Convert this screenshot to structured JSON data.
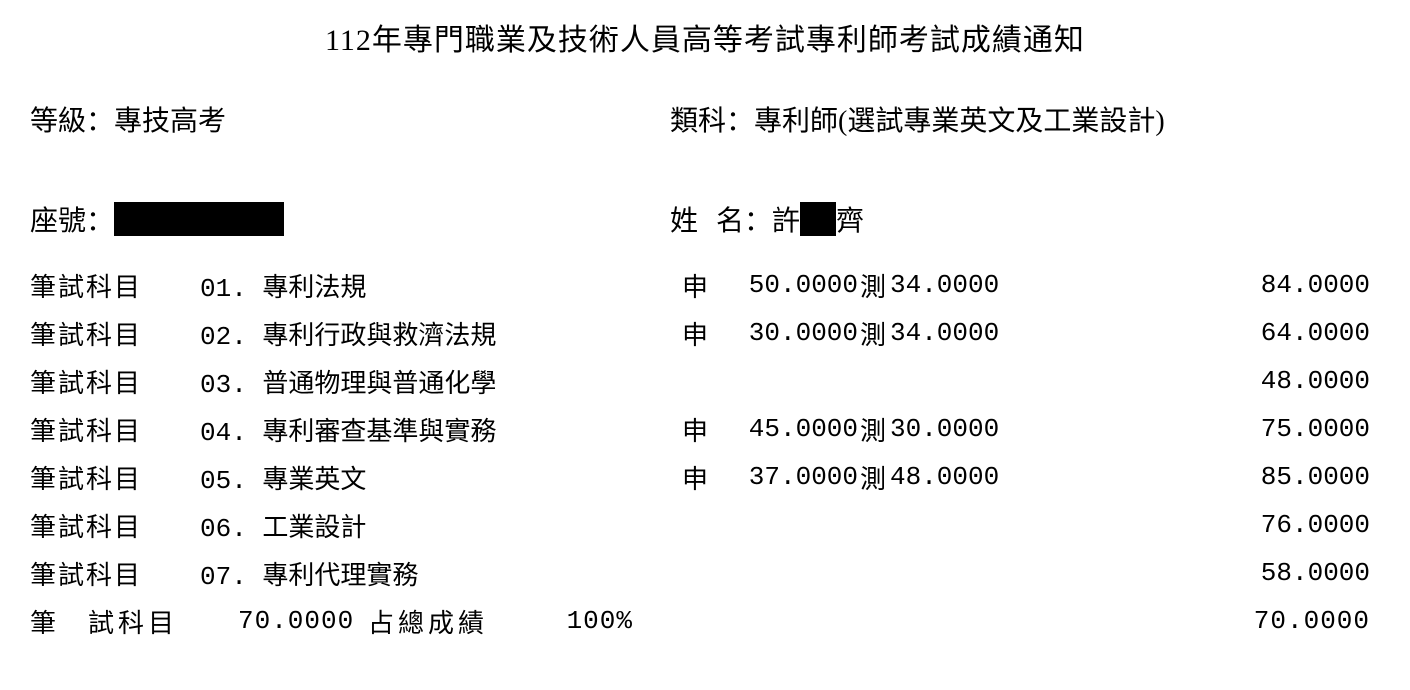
{
  "title": "112年專門職業及技術人員高等考試專利師考試成績通知",
  "header": {
    "level_label": "等級：",
    "level_value": "專技高考",
    "category_label": "類科：",
    "category_value": "專利師(選試專業英文及工業設計)"
  },
  "identity": {
    "seat_label": "座號：",
    "name_label": "姓",
    "name_label2": "名：",
    "surname": "許",
    "given_suffix": "齊"
  },
  "subject_label": "筆試科目",
  "shen_label": "申",
  "ce_label": "測",
  "subjects": [
    {
      "num": "01.",
      "name": "專利法規",
      "score1": "50.0000",
      "score2": "34.0000",
      "total": "84.0000"
    },
    {
      "num": "02.",
      "name": "專利行政與救濟法規",
      "score1": "30.0000",
      "score2": "34.0000",
      "total": "64.0000"
    },
    {
      "num": "03.",
      "name": "普通物理與普通化學",
      "score1": "",
      "score2": "",
      "total": "48.0000"
    },
    {
      "num": "04.",
      "name": "專利審查基準與實務",
      "score1": "45.0000",
      "score2": "30.0000",
      "total": "75.0000"
    },
    {
      "num": "05.",
      "name": "專業英文",
      "score1": "37.0000",
      "score2": "48.0000",
      "total": "85.0000"
    },
    {
      "num": "06.",
      "name": "工業設計",
      "score1": "",
      "score2": "",
      "total": "76.0000"
    },
    {
      "num": "07.",
      "name": "專利代理實務",
      "score1": "",
      "score2": "",
      "total": "58.0000"
    }
  ],
  "summary": {
    "label_part1": "筆",
    "label_part2": "試科目",
    "written_score": "70.0000",
    "percent_label": "占總成績",
    "percent_value": "100%",
    "overall_total": "70.0000"
  },
  "colors": {
    "text": "#000000",
    "background": "#ffffff",
    "redaction": "#000000"
  },
  "typography": {
    "title_fontsize": 30,
    "body_fontsize": 28,
    "row_fontsize": 26,
    "font_family_cjk": "DFKai-SB / KaiTi",
    "font_family_numeric": "Courier New / monospace"
  }
}
